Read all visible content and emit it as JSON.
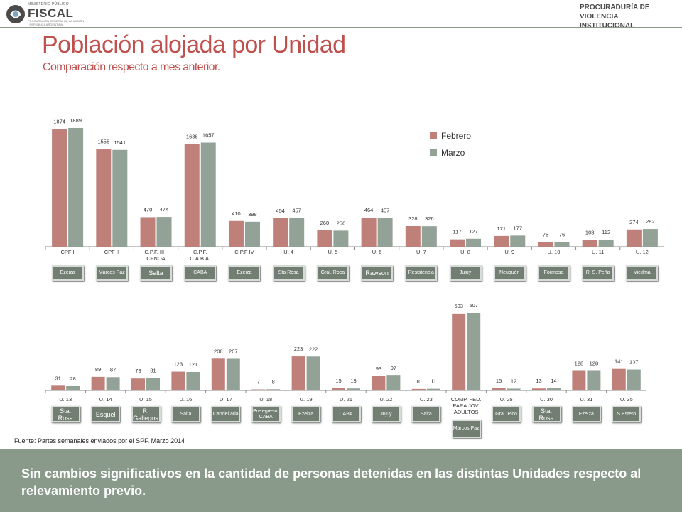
{
  "header": {
    "logo_top": "MINISTERIO PÚBLICO",
    "logo_main": "FISCAL",
    "logo_sub": "PROCURACIÓN GENERAL DE LA NACIÓN · REPÚBLICA ARGENTINA",
    "org_name": "PROCURADURÍA DE VIOLENCIA INSTITUCIONAL"
  },
  "title": "Población alojada por Unidad",
  "subtitle": "Comparación respecto a mes anterior.",
  "colors": {
    "febrero": "#c0807a",
    "marzo": "#93a296",
    "accent": "#c0504d",
    "band": "#8a9a8a"
  },
  "chart_data": [
    {
      "type": "bar",
      "categories": [
        "CPF I",
        "CPF II",
        "C.P.F. III - CFNOA",
        "C.P.F. C.A.B.A.",
        "C.P.F IV",
        "U. 4",
        "U. 5",
        "U. 6",
        "U. 7",
        "U. 8",
        "U. 9",
        "U. 10",
        "U. 11",
        "U. 12"
      ],
      "series": [
        {
          "name": "Febrero",
          "values": [
            1874,
            1556,
            470,
            1636,
            410,
            454,
            260,
            464,
            328,
            117,
            171,
            75,
            108,
            274
          ]
        },
        {
          "name": "Marzo",
          "values": [
            1889,
            1541,
            474,
            1657,
            398,
            457,
            256,
            457,
            326,
            127,
            177,
            76,
            112,
            282
          ]
        }
      ],
      "legend": "top-right",
      "grid": false,
      "locations": [
        "Ezeiza",
        "Marcos Paz",
        "Salta",
        "CABA",
        "Ezeiza",
        "Sta Rosa",
        "Gral. Roca",
        "Rawson",
        "Resistencia",
        "Jujuy",
        "Neuquén",
        "Formosa",
        "R. S. Peña",
        "Viedma"
      ]
    },
    {
      "type": "bar",
      "categories": [
        "U. 13",
        "U. 14",
        "U. 15",
        "U. 16",
        "U. 17",
        "U. 18",
        "U. 19",
        "U. 21",
        "U. 22",
        "U. 23",
        "COMP. FED. PARA JOV. ADULTOS",
        "U. 25",
        "U. 30",
        "U. 31",
        "U. 35"
      ],
      "series": [
        {
          "name": "Febrero",
          "values": [
            31,
            89,
            78,
            123,
            208,
            7,
            223,
            15,
            93,
            10,
            503,
            15,
            13,
            128,
            141
          ]
        },
        {
          "name": "Marzo",
          "values": [
            28,
            87,
            81,
            121,
            207,
            8,
            222,
            13,
            97,
            11,
            507,
            12,
            14,
            128,
            137
          ]
        }
      ],
      "grid": false,
      "locations": [
        "Sta. Rosa",
        "Esquel",
        "R. Gallegos",
        "Salta",
        "Candel aria",
        "Pre egreso. CABA",
        "Ezeiza",
        "CABA",
        "Jujuy",
        "Salta",
        "Marcos Paz",
        "Gral. Pico",
        "Sta. Rosa",
        "Ezeiza",
        "S Estero"
      ]
    }
  ],
  "source": "Fuente: Partes semanales enviados por el SPF. Marzo 2014",
  "footer_text": "Sin cambios significativos en la cantidad de personas detenidas en las distintas Unidades respecto al relevamiento previo."
}
